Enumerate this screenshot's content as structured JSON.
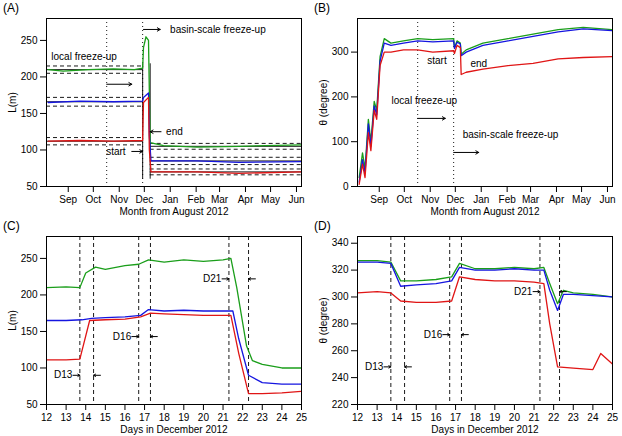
{
  "chart_data": [
    {
      "type": "line",
      "title": "(A)",
      "x_label": "Month from August 2012",
      "y_label": "L(m)",
      "xlim": [
        20,
        325
      ],
      "xticks": [
        {
          "value": 46,
          "label": "Sep"
        },
        {
          "value": 76,
          "label": "Oct"
        },
        {
          "value": 107,
          "label": "Nov"
        },
        {
          "value": 137,
          "label": "Dec"
        },
        {
          "value": 168,
          "label": "Jan"
        },
        {
          "value": 199,
          "label": "Feb"
        },
        {
          "value": 227,
          "label": "Mar"
        },
        {
          "value": 258,
          "label": "Apr"
        },
        {
          "value": 288,
          "label": "May"
        },
        {
          "value": 319,
          "label": "Jun"
        }
      ],
      "ylim": [
        50,
        280
      ],
      "yticks": [
        50,
        100,
        150,
        200,
        250
      ],
      "series": [
        {
          "color": "#1a9e1a",
          "x": [
            22,
            40,
            70,
            100,
            125,
            135,
            136,
            139,
            142,
            143,
            144,
            160,
            200,
            250,
            325
          ],
          "values": [
            210,
            208,
            210,
            211,
            210,
            212,
            240,
            255,
            250,
            180,
            110,
            106,
            104,
            105,
            107
          ]
        },
        {
          "color": "#1515e0",
          "x": [
            22,
            60,
            100,
            135,
            136,
            142,
            143,
            145,
            200,
            250,
            325
          ],
          "values": [
            165,
            167,
            166,
            167,
            172,
            178,
            120,
            85,
            85,
            83,
            84
          ]
        },
        {
          "color": "#e01515",
          "x": [
            22,
            60,
            100,
            135,
            136,
            142,
            143,
            145,
            200,
            250,
            325
          ],
          "values": [
            112,
            113,
            112,
            113,
            165,
            172,
            100,
            70,
            70,
            68,
            70
          ]
        }
      ],
      "hlines": [
        {
          "y": 210,
          "x1": 20,
          "x2": 135,
          "line_style": "solid"
        },
        {
          "y": 205,
          "x1": 20,
          "x2": 135,
          "line_style": "dashed"
        },
        {
          "y": 215,
          "x1": 20,
          "x2": 135,
          "line_style": "dashed"
        },
        {
          "y": 166,
          "x1": 20,
          "x2": 135,
          "line_style": "solid"
        },
        {
          "y": 160,
          "x1": 20,
          "x2": 135,
          "line_style": "dashed"
        },
        {
          "y": 172,
          "x1": 20,
          "x2": 135,
          "line_style": "dashed"
        },
        {
          "y": 112,
          "x1": 20,
          "x2": 135,
          "line_style": "solid"
        },
        {
          "y": 107,
          "x1": 20,
          "x2": 135,
          "line_style": "dashed"
        },
        {
          "y": 117,
          "x1": 20,
          "x2": 135,
          "line_style": "dashed"
        },
        {
          "y": 105,
          "x1": 144,
          "x2": 325,
          "line_style": "solid"
        },
        {
          "y": 101,
          "x1": 144,
          "x2": 325,
          "line_style": "dashed"
        },
        {
          "y": 109,
          "x1": 144,
          "x2": 325,
          "line_style": "dashed"
        },
        {
          "y": 85,
          "x1": 144,
          "x2": 325,
          "line_style": "solid"
        },
        {
          "y": 80,
          "x1": 144,
          "x2": 325,
          "line_style": "dashed"
        },
        {
          "y": 90,
          "x1": 144,
          "x2": 325,
          "line_style": "dashed"
        },
        {
          "y": 70,
          "x1": 144,
          "x2": 325,
          "line_style": "solid"
        },
        {
          "y": 66,
          "x1": 144,
          "x2": 325,
          "line_style": "dashed"
        },
        {
          "y": 74,
          "x1": 144,
          "x2": 325,
          "line_style": "dashed"
        }
      ],
      "vlines": [
        {
          "x": 92,
          "line_style": "dotted"
        },
        {
          "x": 135,
          "line_style": "dotted"
        },
        {
          "x": 135,
          "y1": 60,
          "y2": 218,
          "line_style": "solid"
        },
        {
          "x": 144,
          "y1": 60,
          "y2": 218,
          "line_style": "solid"
        }
      ],
      "annotations": [
        {
          "text": "local freeze-up",
          "x": 65,
          "y": 228
        },
        {
          "text": "basin-scale freeze-up",
          "x": 225,
          "y": 265
        },
        {
          "text": "start",
          "x": 103,
          "y": 98
        },
        {
          "text": "end",
          "x": 173,
          "y": 125
        }
      ],
      "arrows": [
        {
          "x1": 92,
          "x2": 122,
          "y": 190
        },
        {
          "x1": 136,
          "x2": 156,
          "y": 265
        },
        {
          "x1": 122,
          "x2": 135,
          "y": 98
        },
        {
          "x1": 157,
          "x2": 144,
          "y": 125
        }
      ]
    },
    {
      "type": "line",
      "title": "(B)",
      "x_label": "Month from August 2012",
      "y_label": "θ (degree)",
      "xlim": [
        20,
        325
      ],
      "xticks": [
        {
          "value": 46,
          "label": "Sep"
        },
        {
          "value": 76,
          "label": "Oct"
        },
        {
          "value": 107,
          "label": "Nov"
        },
        {
          "value": 137,
          "label": "Dec"
        },
        {
          "value": 168,
          "label": "Jan"
        },
        {
          "value": 199,
          "label": "Feb"
        },
        {
          "value": 227,
          "label": "Mar"
        },
        {
          "value": 258,
          "label": "Apr"
        },
        {
          "value": 288,
          "label": "May"
        },
        {
          "value": 319,
          "label": "Jun"
        }
      ],
      "ylim": [
        0,
        375
      ],
      "yticks": [
        0,
        100,
        200,
        300
      ],
      "series": [
        {
          "color": "#1a9e1a",
          "x": [
            22,
            26,
            29,
            33,
            36,
            40,
            43,
            47,
            52,
            60,
            75,
            92,
            110,
            135,
            136,
            139,
            143,
            144,
            150,
            170,
            200,
            230,
            260,
            290,
            325
          ],
          "values": [
            20,
            75,
            40,
            150,
            100,
            190,
            170,
            290,
            330,
            320,
            325,
            330,
            328,
            330,
            310,
            325,
            320,
            295,
            305,
            320,
            330,
            340,
            350,
            355,
            350
          ]
        },
        {
          "color": "#1515e0",
          "x": [
            22,
            26,
            29,
            33,
            36,
            40,
            43,
            47,
            52,
            60,
            75,
            92,
            110,
            135,
            136,
            139,
            143,
            144,
            150,
            170,
            200,
            230,
            260,
            290,
            325
          ],
          "values": [
            10,
            60,
            30,
            140,
            90,
            180,
            160,
            280,
            320,
            315,
            320,
            325,
            323,
            325,
            308,
            322,
            318,
            292,
            300,
            315,
            325,
            335,
            345,
            352,
            348
          ]
        },
        {
          "color": "#e01515",
          "x": [
            22,
            26,
            29,
            33,
            36,
            40,
            43,
            47,
            52,
            60,
            75,
            92,
            110,
            135,
            136,
            139,
            143,
            144,
            150,
            170,
            200,
            230,
            260,
            290,
            325
          ],
          "values": [
            5,
            50,
            20,
            120,
            80,
            170,
            150,
            270,
            300,
            300,
            305,
            305,
            300,
            303,
            297,
            315,
            310,
            250,
            255,
            262,
            270,
            275,
            285,
            288,
            290
          ]
        }
      ],
      "vlines": [
        {
          "x": 92,
          "line_style": "dotted"
        },
        {
          "x": 135,
          "line_style": "dotted"
        }
      ],
      "annotations": [
        {
          "text": "local freeze-up",
          "x": 100,
          "y": 192
        },
        {
          "text": "basin-scale freeze-up",
          "x": 203,
          "y": 116
        },
        {
          "text": "start",
          "x": 115,
          "y": 280
        },
        {
          "text": "end",
          "x": 165,
          "y": 275
        }
      ],
      "arrows": [
        {
          "x1": 92,
          "x2": 125,
          "y": 152
        },
        {
          "x1": 135,
          "x2": 165,
          "y": 76
        }
      ]
    },
    {
      "type": "line",
      "title": "(C)",
      "x_label": "Days in December 2012",
      "y_label": "L(m)",
      "xlim": [
        12,
        25
      ],
      "xticks": [
        12,
        13,
        14,
        15,
        16,
        17,
        18,
        19,
        20,
        21,
        22,
        23,
        24,
        25
      ],
      "ylim": [
        50,
        280
      ],
      "yticks": [
        50,
        100,
        150,
        200,
        250
      ],
      "series": [
        {
          "color": "#1a9e1a",
          "x": [
            12,
            13,
            13.7,
            14,
            14.5,
            15,
            16,
            16.7,
            17.2,
            18,
            19,
            20,
            21,
            21.4,
            21.7,
            22.2,
            22.5,
            23,
            24,
            25
          ],
          "values": [
            210,
            211,
            210,
            230,
            238,
            235,
            240,
            242,
            248,
            245,
            248,
            246,
            248,
            250,
            210,
            130,
            110,
            105,
            100,
            100
          ]
        },
        {
          "color": "#1515e0",
          "x": [
            12,
            13,
            13.8,
            14.3,
            15,
            16,
            16.8,
            17.2,
            18,
            19,
            20,
            21,
            21.5,
            21.8,
            22.3,
            23,
            24,
            25
          ],
          "values": [
            165,
            165,
            166,
            168,
            169,
            170,
            172,
            180,
            178,
            179,
            178,
            178,
            178,
            140,
            90,
            80,
            78,
            78
          ]
        },
        {
          "color": "#e01515",
          "x": [
            12,
            13,
            13.7,
            14.2,
            15,
            16,
            16.8,
            17.3,
            18,
            19,
            20,
            21,
            21.4,
            21.8,
            22.3,
            23,
            24,
            25
          ],
          "values": [
            111,
            111,
            112,
            165,
            166,
            167,
            170,
            175,
            174,
            173,
            172,
            172,
            172,
            120,
            65,
            65,
            66,
            68
          ]
        }
      ],
      "vlines": [
        {
          "x": 13.7,
          "line_style": "dashed"
        },
        {
          "x": 14.4,
          "line_style": "dashed"
        },
        {
          "x": 16.7,
          "line_style": "dashed"
        },
        {
          "x": 17.3,
          "line_style": "dashed"
        },
        {
          "x": 21.3,
          "line_style": "dashed"
        },
        {
          "x": 22.3,
          "line_style": "dashed"
        }
      ],
      "annotations": [
        {
          "text": "D13",
          "x": 12.85,
          "y": 90
        },
        {
          "text": "D16",
          "x": 15.85,
          "y": 143
        },
        {
          "text": "D21",
          "x": 20.45,
          "y": 222
        }
      ],
      "arrows": [
        {
          "x1": 13.35,
          "x2": 13.7,
          "y": 90
        },
        {
          "x1": 14.75,
          "x2": 14.4,
          "y": 90
        },
        {
          "x1": 16.35,
          "x2": 16.7,
          "y": 143
        },
        {
          "x1": 17.65,
          "x2": 17.3,
          "y": 143
        },
        {
          "x1": 20.95,
          "x2": 21.3,
          "y": 222
        },
        {
          "x1": 22.65,
          "x2": 22.3,
          "y": 222
        }
      ]
    },
    {
      "type": "line",
      "title": "(D)",
      "x_label": "Days in December 2012",
      "y_label": "θ (degree)",
      "xlim": [
        12,
        25
      ],
      "xticks": [
        12,
        13,
        14,
        15,
        16,
        17,
        18,
        19,
        20,
        21,
        22,
        23,
        24,
        25
      ],
      "ylim": [
        220,
        345
      ],
      "yticks": [
        220,
        240,
        260,
        280,
        300,
        320,
        340
      ],
      "series": [
        {
          "color": "#1a9e1a",
          "x": [
            12,
            13,
            13.7,
            14.2,
            15,
            16,
            16.8,
            17.2,
            18,
            19,
            20,
            21,
            21.5,
            21.8,
            22.2,
            22.5,
            23,
            24,
            25
          ],
          "values": [
            327,
            327,
            326,
            312,
            312,
            313,
            315,
            325,
            321,
            321,
            322,
            321,
            322,
            310,
            295,
            305,
            303,
            302,
            300
          ]
        },
        {
          "color": "#1515e0",
          "x": [
            12,
            13,
            13.7,
            14.2,
            15,
            16,
            16.8,
            17.2,
            18,
            19,
            20,
            21,
            21.5,
            21.8,
            22.2,
            22.5,
            23,
            24,
            25
          ],
          "values": [
            326,
            326,
            325,
            308,
            309,
            310,
            312,
            322,
            320,
            320,
            321,
            320,
            320,
            305,
            290,
            302,
            302,
            301,
            300
          ]
        },
        {
          "color": "#e01515",
          "x": [
            12,
            13,
            13.7,
            14.2,
            15,
            16,
            16.8,
            17.2,
            18,
            19,
            20,
            21,
            21.5,
            21.8,
            22.2,
            23,
            24,
            24.4,
            25
          ],
          "values": [
            303,
            304,
            303,
            297,
            296,
            296,
            297,
            315,
            313,
            312,
            312,
            311,
            310,
            280,
            248,
            247,
            246,
            258,
            250
          ]
        }
      ],
      "vlines": [
        {
          "x": 13.7,
          "line_style": "dashed"
        },
        {
          "x": 14.4,
          "line_style": "dashed"
        },
        {
          "x": 16.7,
          "line_style": "dashed"
        },
        {
          "x": 17.3,
          "line_style": "dashed"
        },
        {
          "x": 21.3,
          "line_style": "dashed"
        },
        {
          "x": 22.3,
          "line_style": "dashed"
        }
      ],
      "annotations": [
        {
          "text": "D13",
          "x": 12.85,
          "y": 248
        },
        {
          "text": "D16",
          "x": 15.85,
          "y": 272
        },
        {
          "text": "D21",
          "x": 20.45,
          "y": 304
        }
      ],
      "arrows": [
        {
          "x1": 13.35,
          "x2": 13.7,
          "y": 248
        },
        {
          "x1": 14.75,
          "x2": 14.4,
          "y": 248
        },
        {
          "x1": 16.35,
          "x2": 16.7,
          "y": 272
        },
        {
          "x1": 17.65,
          "x2": 17.3,
          "y": 272
        },
        {
          "x1": 20.95,
          "x2": 21.3,
          "y": 304
        },
        {
          "x1": 22.65,
          "x2": 22.3,
          "y": 304
        }
      ]
    }
  ]
}
